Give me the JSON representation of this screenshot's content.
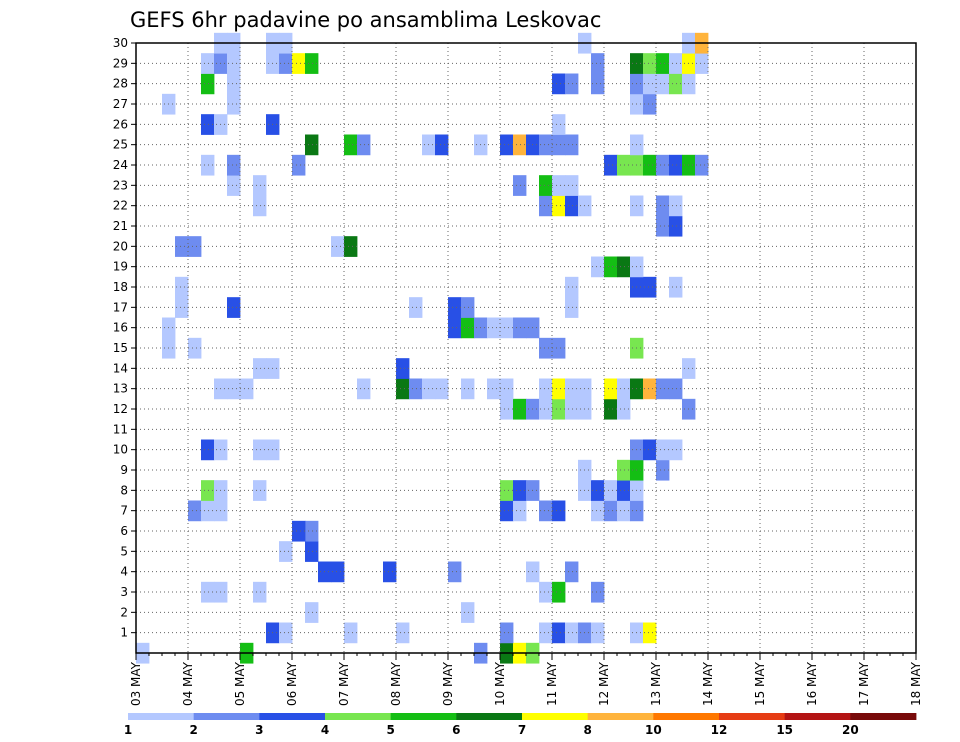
{
  "chart_data": {
    "type": "heatmap",
    "title": "GEFS 6hr padavine po ansamblima Leskovac",
    "x_tick_labels": [
      "03 MAY",
      "04 MAY",
      "05 MAY",
      "06 MAY",
      "07 MAY",
      "08 MAY",
      "09 MAY",
      "10 MAY",
      "11 MAY",
      "12 MAY",
      "13 MAY",
      "14 MAY",
      "15 MAY",
      "16 MAY",
      "17 MAY",
      "18 MAY"
    ],
    "y_tick_labels": [
      "1",
      "2",
      "3",
      "4",
      "5",
      "6",
      "7",
      "8",
      "9",
      "10",
      "11",
      "12",
      "13",
      "14",
      "15",
      "16",
      "17",
      "18",
      "19",
      "20",
      "21",
      "22",
      "23",
      "24",
      "25",
      "26",
      "27",
      "28",
      "29",
      "30"
    ],
    "member_range": [
      0,
      30
    ],
    "time_steps_per_day": 4,
    "grid": true,
    "legend": {
      "placement": "bottom",
      "labels": [
        "1",
        "2",
        "3",
        "4",
        "5",
        "6",
        "7",
        "8",
        "10",
        "12",
        "15",
        "20"
      ],
      "colors": [
        "#b4c8ff",
        "#6e8cf0",
        "#2850e6",
        "#78e650",
        "#14be14",
        "#0a7814",
        "#ffff00",
        "#ffb43c",
        "#ff7800",
        "#e63c14",
        "#b41414",
        "#780a0a"
      ]
    },
    "cells": [
      [
        0,
        0,
        1
      ],
      [
        8,
        0,
        5
      ],
      [
        26,
        0,
        2
      ],
      [
        28,
        0,
        6
      ],
      [
        29,
        0,
        7
      ],
      [
        30,
        0,
        4
      ],
      [
        10,
        1,
        3
      ],
      [
        11,
        1,
        1
      ],
      [
        16,
        1,
        1
      ],
      [
        20,
        1,
        1
      ],
      [
        28,
        1,
        2
      ],
      [
        31,
        1,
        1
      ],
      [
        32,
        1,
        3
      ],
      [
        33,
        1,
        1
      ],
      [
        34,
        1,
        2
      ],
      [
        35,
        1,
        1
      ],
      [
        38,
        1,
        1
      ],
      [
        39,
        1,
        7
      ],
      [
        13,
        2,
        1
      ],
      [
        25,
        2,
        1
      ],
      [
        5,
        3,
        1
      ],
      [
        6,
        3,
        1
      ],
      [
        9,
        3,
        1
      ],
      [
        31,
        3,
        1
      ],
      [
        32,
        3,
        5
      ],
      [
        35,
        3,
        2
      ],
      [
        14,
        4,
        3
      ],
      [
        15,
        4,
        3
      ],
      [
        19,
        4,
        3
      ],
      [
        24,
        4,
        2
      ],
      [
        30,
        4,
        1
      ],
      [
        33,
        4,
        2
      ],
      [
        11,
        5,
        1
      ],
      [
        13,
        5,
        3
      ],
      [
        13,
        6,
        2
      ],
      [
        12,
        6,
        3
      ],
      [
        4,
        7,
        2
      ],
      [
        5,
        7,
        1
      ],
      [
        6,
        7,
        1
      ],
      [
        28,
        7,
        3
      ],
      [
        29,
        7,
        1
      ],
      [
        31,
        7,
        2
      ],
      [
        32,
        7,
        3
      ],
      [
        35,
        7,
        1
      ],
      [
        36,
        7,
        2
      ],
      [
        37,
        7,
        1
      ],
      [
        38,
        7,
        2
      ],
      [
        5,
        8,
        4
      ],
      [
        6,
        8,
        1
      ],
      [
        9,
        8,
        1
      ],
      [
        28,
        8,
        4
      ],
      [
        29,
        8,
        3
      ],
      [
        30,
        8,
        2
      ],
      [
        34,
        8,
        1
      ],
      [
        35,
        8,
        3
      ],
      [
        36,
        8,
        1
      ],
      [
        37,
        8,
        3
      ],
      [
        38,
        8,
        1
      ],
      [
        34,
        9,
        1
      ],
      [
        37,
        9,
        4
      ],
      [
        38,
        9,
        5
      ],
      [
        40,
        9,
        2
      ],
      [
        5,
        10,
        3
      ],
      [
        6,
        10,
        1
      ],
      [
        9,
        10,
        1
      ],
      [
        10,
        10,
        1
      ],
      [
        38,
        10,
        2
      ],
      [
        39,
        10,
        3
      ],
      [
        40,
        10,
        1
      ],
      [
        41,
        10,
        1
      ],
      [
        28,
        12,
        1
      ],
      [
        29,
        12,
        5
      ],
      [
        30,
        12,
        2
      ],
      [
        31,
        12,
        1
      ],
      [
        32,
        12,
        4
      ],
      [
        33,
        12,
        1
      ],
      [
        34,
        12,
        1
      ],
      [
        36,
        12,
        6
      ],
      [
        37,
        12,
        1
      ],
      [
        42,
        12,
        2
      ],
      [
        6,
        13,
        1
      ],
      [
        7,
        13,
        1
      ],
      [
        8,
        13,
        1
      ],
      [
        17,
        13,
        1
      ],
      [
        20,
        13,
        6
      ],
      [
        21,
        13,
        2
      ],
      [
        22,
        13,
        1
      ],
      [
        23,
        13,
        1
      ],
      [
        25,
        13,
        1
      ],
      [
        27,
        13,
        1
      ],
      [
        28,
        13,
        1
      ],
      [
        31,
        13,
        1
      ],
      [
        32,
        13,
        7
      ],
      [
        33,
        13,
        1
      ],
      [
        34,
        13,
        1
      ],
      [
        36,
        13,
        7
      ],
      [
        37,
        13,
        1
      ],
      [
        38,
        13,
        6
      ],
      [
        39,
        13,
        8
      ],
      [
        40,
        13,
        2
      ],
      [
        41,
        13,
        2
      ],
      [
        9,
        14,
        1
      ],
      [
        10,
        14,
        1
      ],
      [
        20,
        14,
        3
      ],
      [
        42,
        14,
        1
      ],
      [
        2,
        15,
        1
      ],
      [
        4,
        15,
        1
      ],
      [
        31,
        15,
        2
      ],
      [
        32,
        15,
        2
      ],
      [
        38,
        15,
        4
      ],
      [
        2,
        16,
        1
      ],
      [
        24,
        16,
        3
      ],
      [
        25,
        16,
        5
      ],
      [
        26,
        16,
        2
      ],
      [
        27,
        16,
        1
      ],
      [
        28,
        16,
        1
      ],
      [
        29,
        16,
        2
      ],
      [
        30,
        16,
        2
      ],
      [
        3,
        17,
        1
      ],
      [
        7,
        17,
        3
      ],
      [
        21,
        17,
        1
      ],
      [
        24,
        17,
        3
      ],
      [
        25,
        17,
        2
      ],
      [
        33,
        17,
        1
      ],
      [
        3,
        18,
        1
      ],
      [
        33,
        18,
        1
      ],
      [
        38,
        18,
        3
      ],
      [
        39,
        18,
        3
      ],
      [
        41,
        18,
        1
      ],
      [
        35,
        19,
        1
      ],
      [
        36,
        19,
        5
      ],
      [
        37,
        19,
        6
      ],
      [
        38,
        19,
        1
      ],
      [
        3,
        20,
        2
      ],
      [
        4,
        20,
        2
      ],
      [
        15,
        20,
        1
      ],
      [
        16,
        20,
        6
      ],
      [
        40,
        21,
        2
      ],
      [
        41,
        21,
        3
      ],
      [
        9,
        22,
        1
      ],
      [
        31,
        22,
        2
      ],
      [
        32,
        22,
        7
      ],
      [
        33,
        22,
        3
      ],
      [
        34,
        22,
        1
      ],
      [
        38,
        22,
        1
      ],
      [
        40,
        22,
        2
      ],
      [
        41,
        22,
        1
      ],
      [
        7,
        23,
        1
      ],
      [
        9,
        23,
        1
      ],
      [
        29,
        23,
        2
      ],
      [
        31,
        23,
        5
      ],
      [
        32,
        23,
        1
      ],
      [
        33,
        23,
        1
      ],
      [
        5,
        24,
        1
      ],
      [
        7,
        24,
        2
      ],
      [
        12,
        24,
        2
      ],
      [
        36,
        24,
        3
      ],
      [
        37,
        24,
        4
      ],
      [
        38,
        24,
        4
      ],
      [
        39,
        24,
        5
      ],
      [
        40,
        24,
        2
      ],
      [
        41,
        24,
        3
      ],
      [
        42,
        24,
        5
      ],
      [
        43,
        24,
        2
      ],
      [
        13,
        25,
        6
      ],
      [
        16,
        25,
        5
      ],
      [
        17,
        25,
        2
      ],
      [
        22,
        25,
        1
      ],
      [
        23,
        25,
        3
      ],
      [
        26,
        25,
        1
      ],
      [
        28,
        25,
        3
      ],
      [
        29,
        25,
        8
      ],
      [
        30,
        25,
        3
      ],
      [
        31,
        25,
        2
      ],
      [
        32,
        25,
        2
      ],
      [
        33,
        25,
        2
      ],
      [
        38,
        25,
        1
      ],
      [
        5,
        26,
        3
      ],
      [
        6,
        26,
        1
      ],
      [
        10,
        26,
        3
      ],
      [
        32,
        26,
        1
      ],
      [
        2,
        27,
        1
      ],
      [
        7,
        27,
        1
      ],
      [
        38,
        27,
        1
      ],
      [
        39,
        27,
        2
      ],
      [
        5,
        28,
        5
      ],
      [
        7,
        28,
        1
      ],
      [
        32,
        28,
        3
      ],
      [
        33,
        28,
        2
      ],
      [
        35,
        28,
        2
      ],
      [
        38,
        28,
        2
      ],
      [
        39,
        28,
        1
      ],
      [
        40,
        28,
        1
      ],
      [
        41,
        28,
        4
      ],
      [
        42,
        28,
        1
      ],
      [
        5,
        29,
        1
      ],
      [
        6,
        29,
        2
      ],
      [
        7,
        29,
        1
      ],
      [
        10,
        29,
        1
      ],
      [
        11,
        29,
        2
      ],
      [
        12,
        29,
        7
      ],
      [
        13,
        29,
        5
      ],
      [
        35,
        29,
        2
      ],
      [
        38,
        29,
        6
      ],
      [
        39,
        29,
        4
      ],
      [
        40,
        29,
        5
      ],
      [
        41,
        29,
        1
      ],
      [
        42,
        29,
        7
      ],
      [
        43,
        29,
        1
      ],
      [
        6,
        30,
        1
      ],
      [
        7,
        30,
        1
      ],
      [
        10,
        30,
        1
      ],
      [
        11,
        30,
        1
      ],
      [
        34,
        30,
        1
      ],
      [
        42,
        30,
        1
      ],
      [
        43,
        30,
        8
      ]
    ]
  }
}
